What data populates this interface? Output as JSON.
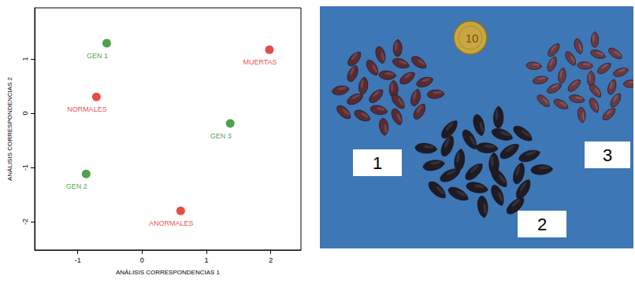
{
  "chart_data": {
    "type": "scatter",
    "x_label": "ANÁLISIS CORRESPONDENCIAS 1",
    "y_label": "ANÁLISIS CORRESPONDENCIAS 2",
    "xlim": [
      -1.67,
      2.47
    ],
    "xticks": [
      -1,
      0,
      1,
      2
    ],
    "ylim": [
      -2.52,
      1.94
    ],
    "yticks": [
      -2,
      -1,
      0,
      1
    ],
    "grid": false,
    "series": [
      {
        "color": "#228b22",
        "point_labels": [
          "GEN 1",
          "GEN 2",
          "GEN 3"
        ],
        "x": [
          -0.55,
          -0.87,
          1.37
        ],
        "y": [
          1.29,
          -1.12,
          -0.19
        ]
      },
      {
        "color": "#e0201b",
        "point_labels": [
          "NORMALES",
          "ANORMALES",
          "MUERTAS"
        ],
        "x": [
          -0.71,
          0.6,
          1.98
        ],
        "y": [
          0.3,
          -1.8,
          1.17
        ]
      }
    ]
  },
  "photo": {
    "group_labels": [
      "1",
      "2",
      "3"
    ],
    "coin_label": "10"
  }
}
